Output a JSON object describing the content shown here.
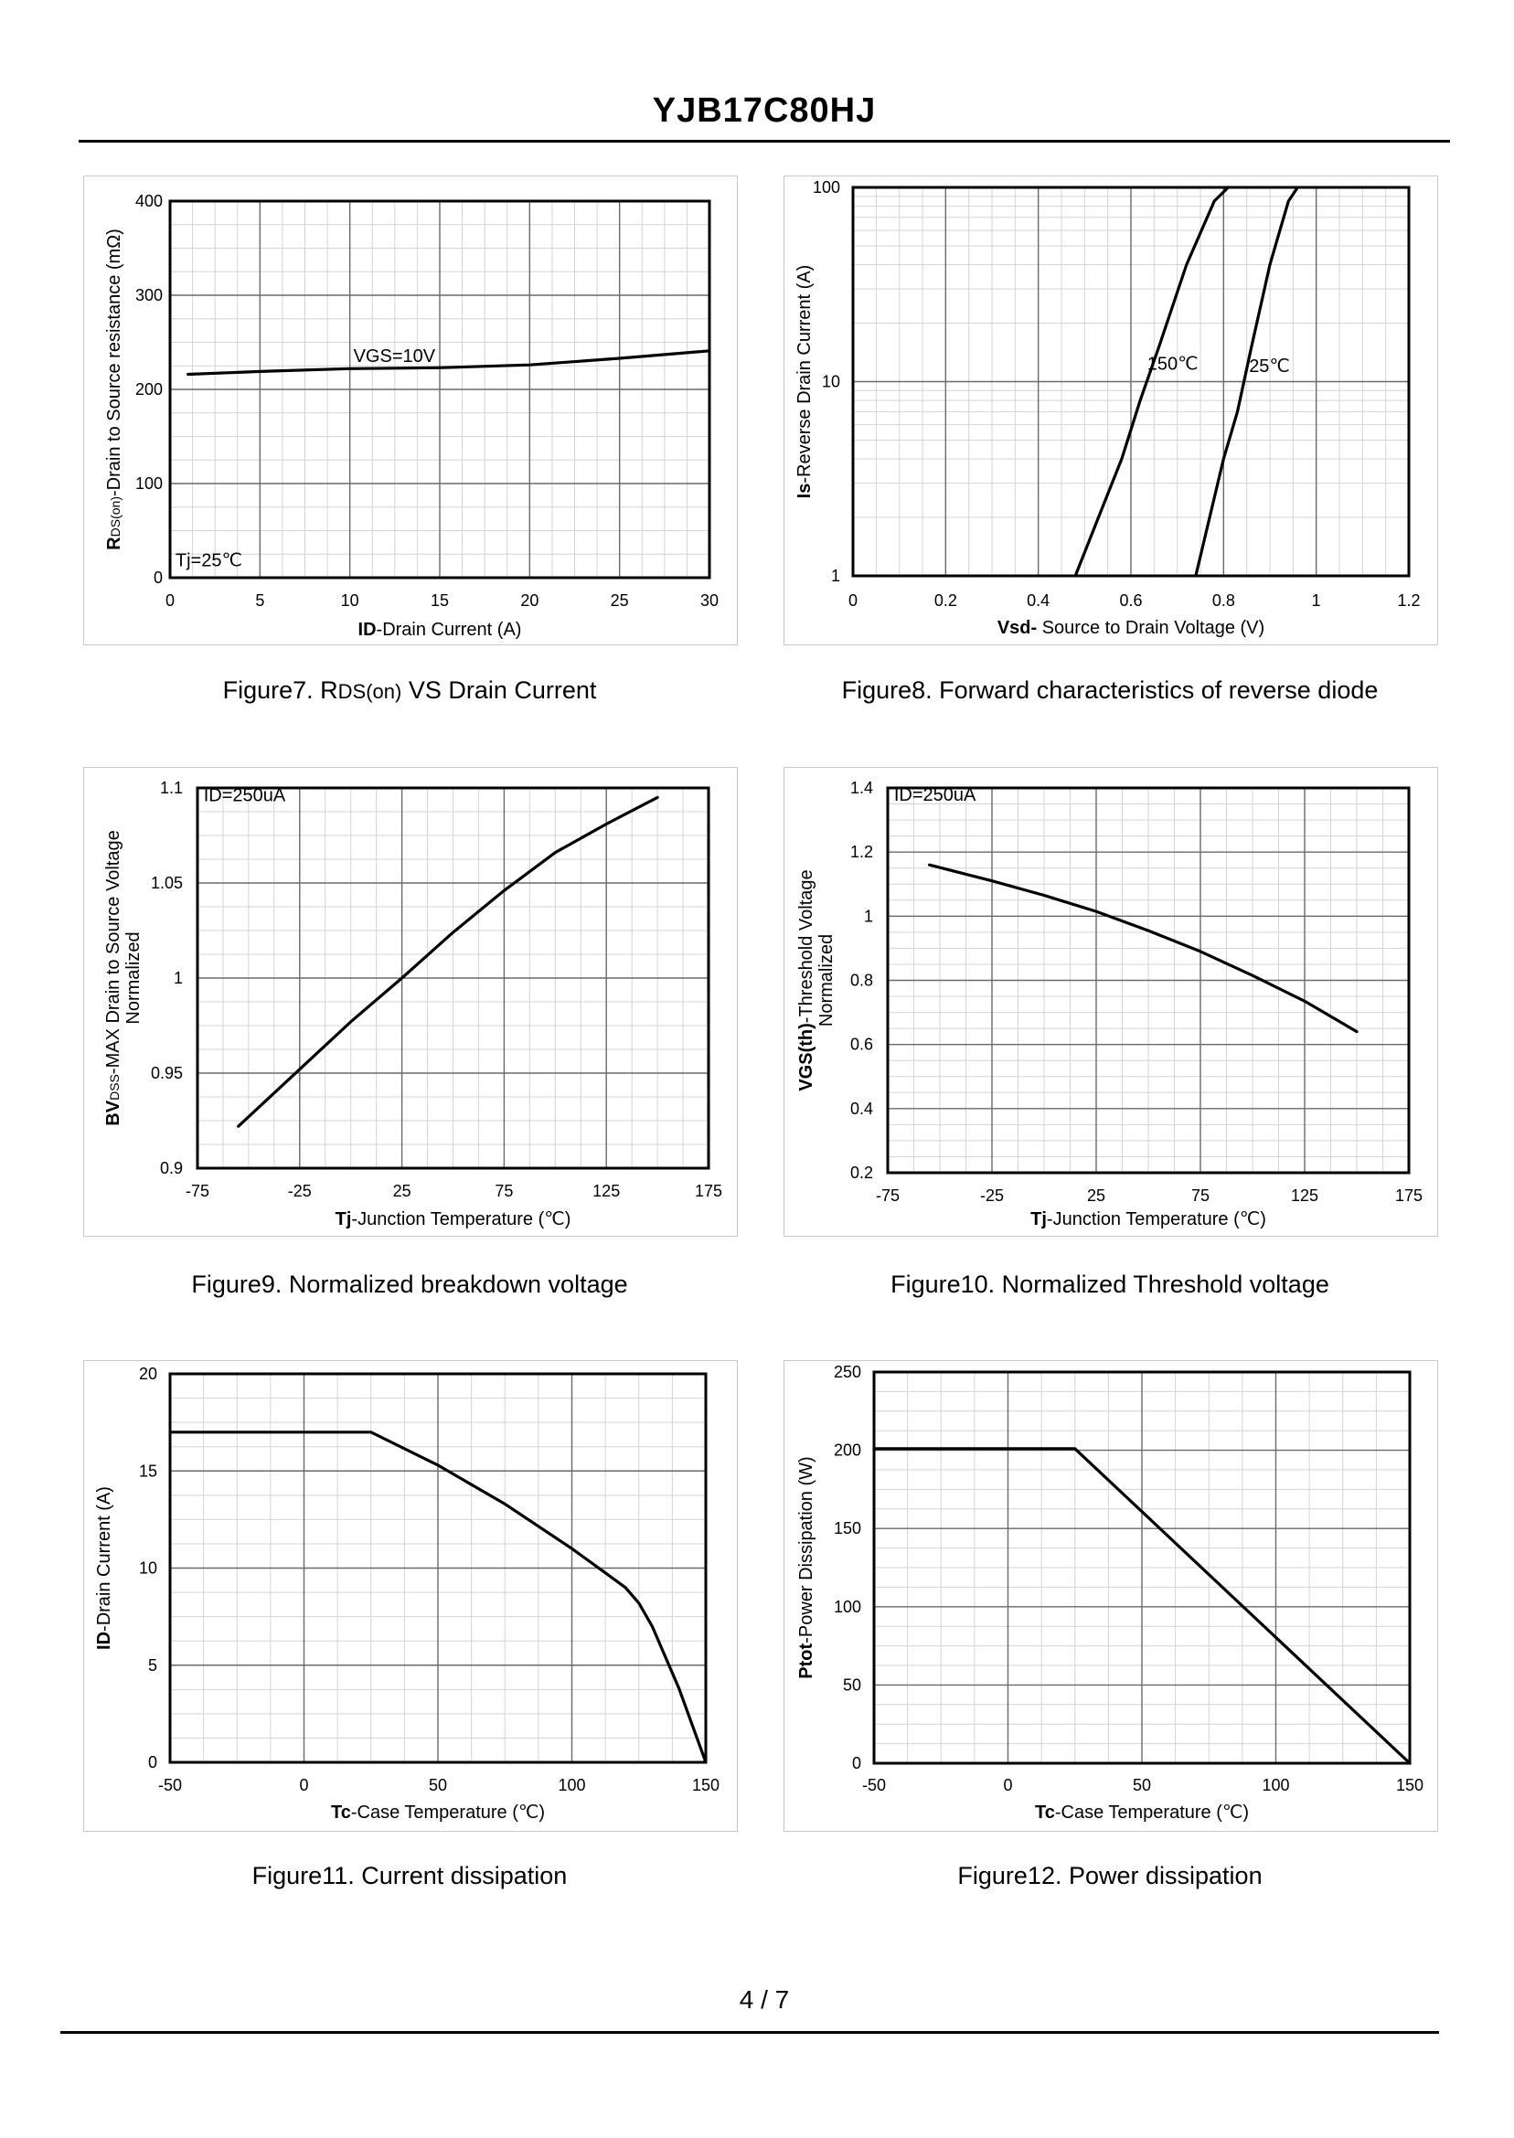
{
  "document": {
    "title": "YJB17C80HJ",
    "page": "4 / 7"
  },
  "captions": {
    "fig7_prefix": "Figure7. R",
    "fig7_sub": "DS(on)",
    "fig7_suffix": " VS Drain Current",
    "fig8": "Figure8. Forward characteristics of reverse diode",
    "fig9": "Figure9. Normalized breakdown voltage",
    "fig10": "Figure10. Normalized Threshold voltage",
    "fig11": "Figure11. Current dissipation",
    "fig12": "Figure12. Power dissipation"
  },
  "chart_data": [
    {
      "id": "fig7",
      "type": "line",
      "xlim": [
        0,
        30
      ],
      "ylim": [
        0,
        400
      ],
      "xticks": [
        0,
        5,
        10,
        15,
        20,
        25,
        30
      ],
      "yticks": [
        0,
        100,
        200,
        300,
        400
      ],
      "xlabel_bold": "ID",
      "xlabel_rest": "-Drain Current (A)",
      "ylabel_bold": "R",
      "ylabel_sub": "DS(on)",
      "ylabel_rest": "-Drain to Source resistance (mΩ)",
      "annotations": [
        {
          "text": "VGS=10V",
          "x": 10.2,
          "y": 229
        },
        {
          "text": "Tj=25℃",
          "x": 0.3,
          "y": 12
        }
      ],
      "series": [
        {
          "name": "VGS=10V",
          "x": [
            1,
            5,
            10,
            15,
            20,
            25,
            30
          ],
          "y": [
            216,
            219,
            222,
            223,
            226,
            233,
            241
          ]
        }
      ]
    },
    {
      "id": "fig8",
      "type": "line",
      "yscale": "log",
      "xlim": [
        0,
        1.2
      ],
      "ylim": [
        1,
        100
      ],
      "xticks": [
        0,
        0.2,
        0.4,
        0.6,
        0.8,
        1,
        1.2
      ],
      "xtick_labels": [
        "0",
        "0.2",
        "0.4",
        "0.6",
        "0.8",
        "1",
        "1.2"
      ],
      "yticks": [
        1,
        10,
        100
      ],
      "xlabel_bold": "Vsd-",
      "xlabel_rest": " Source to Drain Voltage (V)",
      "ylabel_bold": "Is",
      "ylabel_rest": "-Reverse  Drain Current (A)",
      "annotations": [
        {
          "text": "150℃",
          "x": 0.635,
          "y": 11.5
        },
        {
          "text": "25℃",
          "x": 0.855,
          "y": 11.2
        }
      ],
      "series": [
        {
          "name": "150℃",
          "x": [
            0.48,
            0.53,
            0.58,
            0.62,
            0.66,
            0.72,
            0.78,
            0.81
          ],
          "y": [
            1,
            2,
            4,
            8,
            15,
            40,
            85,
            100
          ]
        },
        {
          "name": "25℃",
          "x": [
            0.74,
            0.77,
            0.8,
            0.83,
            0.86,
            0.9,
            0.94,
            0.96
          ],
          "y": [
            1,
            2,
            4,
            7,
            15,
            40,
            85,
            100
          ]
        }
      ]
    },
    {
      "id": "fig9",
      "type": "line",
      "xlim": [
        -75,
        175
      ],
      "ylim": [
        0.9,
        1.1
      ],
      "xticks": [
        -75,
        -25,
        25,
        75,
        125,
        175
      ],
      "yticks": [
        0.9,
        0.95,
        1,
        1.05,
        1.1
      ],
      "ytick_labels": [
        "0.9",
        "0.95",
        "1",
        "1.05",
        "1.1"
      ],
      "xlabel_bold": "Tj",
      "xlabel_rest": "-Junction  Temperature (℃)",
      "ylabel_bold": "BV",
      "ylabel_sub": "DSS",
      "ylabel_rest": "-MAX Drain to Source Voltage",
      "ylabel_line2": "Normalized",
      "annotations": [
        {
          "text": "ID=250uA",
          "x": -72,
          "y": 1.093
        }
      ],
      "series": [
        {
          "name": "BVDSS",
          "x": [
            -55,
            -25,
            0,
            25,
            50,
            75,
            100,
            125,
            150
          ],
          "y": [
            0.922,
            0.952,
            0.977,
            1.0,
            1.024,
            1.046,
            1.066,
            1.081,
            1.095
          ]
        }
      ]
    },
    {
      "id": "fig10",
      "type": "line",
      "xlim": [
        -75,
        175
      ],
      "ylim": [
        0.2,
        1.4
      ],
      "xticks": [
        -75,
        -25,
        25,
        75,
        125,
        175
      ],
      "yticks": [
        0.2,
        0.4,
        0.6,
        0.8,
        1,
        1.2,
        1.4
      ],
      "ytick_labels": [
        "0.2",
        "0.4",
        "0.6",
        "0.8",
        "1",
        "1.2",
        "1.4"
      ],
      "xlabel_bold": "Tj",
      "xlabel_rest": "-Junction  Temperature (℃)",
      "ylabel_bold": "VGS(th)",
      "ylabel_rest": "-Threshold  Voltage",
      "ylabel_line2": "Normalized",
      "annotations": [
        {
          "text": "ID=250uA",
          "x": -72,
          "y": 1.36
        }
      ],
      "series": [
        {
          "name": "VGS(th)",
          "x": [
            -55,
            -25,
            0,
            25,
            50,
            75,
            100,
            125,
            150
          ],
          "y": [
            1.16,
            1.11,
            1.065,
            1.015,
            0.955,
            0.89,
            0.815,
            0.735,
            0.64
          ]
        }
      ]
    },
    {
      "id": "fig11",
      "type": "line",
      "xlim": [
        -50,
        150
      ],
      "ylim": [
        0,
        20
      ],
      "xticks": [
        -50,
        0,
        50,
        100,
        150
      ],
      "yticks": [
        0,
        5,
        10,
        15,
        20
      ],
      "xlabel_bold": "Tc",
      "xlabel_rest": "-Case Temperature (℃)",
      "ylabel_bold": "ID",
      "ylabel_rest": "-Drain Current (A)",
      "annotations": [],
      "series": [
        {
          "name": "ID",
          "x": [
            -50,
            25,
            50,
            75,
            100,
            112,
            120,
            125,
            130,
            140,
            150
          ],
          "y": [
            17,
            17,
            15.3,
            13.3,
            11.0,
            9.8,
            9.0,
            8.2,
            7.0,
            3.8,
            0
          ]
        }
      ]
    },
    {
      "id": "fig12",
      "type": "line",
      "xlim": [
        -50,
        150
      ],
      "ylim": [
        0,
        250
      ],
      "xticks": [
        -50,
        0,
        50,
        100,
        150
      ],
      "yticks": [
        0,
        50,
        100,
        150,
        200,
        250
      ],
      "xlabel_bold": "Tc",
      "xlabel_rest": "-Case Temperature (℃)",
      "ylabel_bold": "Ptot",
      "ylabel_rest": "-Power Dissipation (W)",
      "annotations": [],
      "series": [
        {
          "name": "Ptot",
          "x": [
            -50,
            25,
            150
          ],
          "y": [
            201,
            201,
            0
          ]
        }
      ]
    }
  ]
}
